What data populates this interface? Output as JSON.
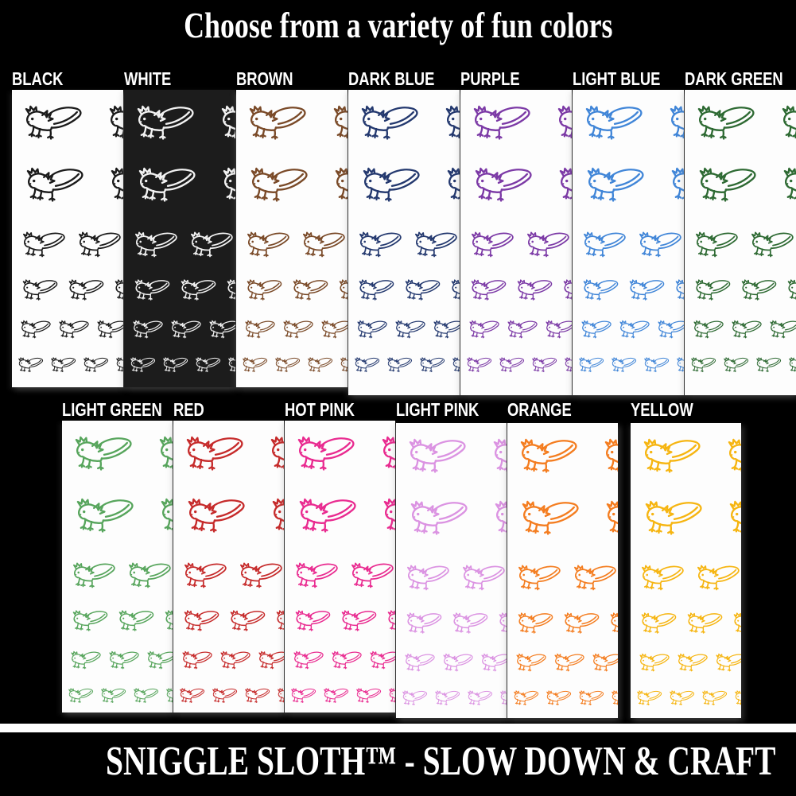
{
  "title": "Choose from a variety of fun colors",
  "pattern_motif": "axolotl-outline-pattern",
  "swatches": {
    "top_row": [
      {
        "label": "BLACK",
        "ink": "#1b1b1b",
        "bg": "#fdfdfd"
      },
      {
        "label": "WHITE",
        "ink": "#f2f2f2",
        "bg": "#1c1c1c"
      },
      {
        "label": "BROWN",
        "ink": "#7a4a28",
        "bg": "#fdfdfd"
      },
      {
        "label": "DARK BLUE",
        "ink": "#24396f",
        "bg": "#fdfdfd"
      },
      {
        "label": "PURPLE",
        "ink": "#7c3aa6",
        "bg": "#fdfdfd"
      },
      {
        "label": "LIGHT BLUE",
        "ink": "#4186d8",
        "bg": "#fdfdfd"
      },
      {
        "label": "DARK GREEN",
        "ink": "#2e6a33",
        "bg": "#fdfdfd"
      }
    ],
    "bottom_row": [
      {
        "label": "LIGHT GREEN",
        "ink": "#57a55c",
        "bg": "#fdfdfd"
      },
      {
        "label": "RED",
        "ink": "#c62b2b",
        "bg": "#fdfdfd"
      },
      {
        "label": "HOT PINK",
        "ink": "#e92b90",
        "bg": "#fdfdfd"
      },
      {
        "label": "LIGHT PINK",
        "ink": "#db93e2",
        "bg": "#fdfdfd"
      },
      {
        "label": "ORANGE",
        "ink": "#f47d20",
        "bg": "#fdfdfd"
      },
      {
        "label": "YELLOW",
        "ink": "#f6b511",
        "bg": "#fdfdfd"
      }
    ]
  },
  "footer": {
    "tagline": "SNIGGLE SLOTH™ - SLOW DOWN & CRAFT"
  }
}
